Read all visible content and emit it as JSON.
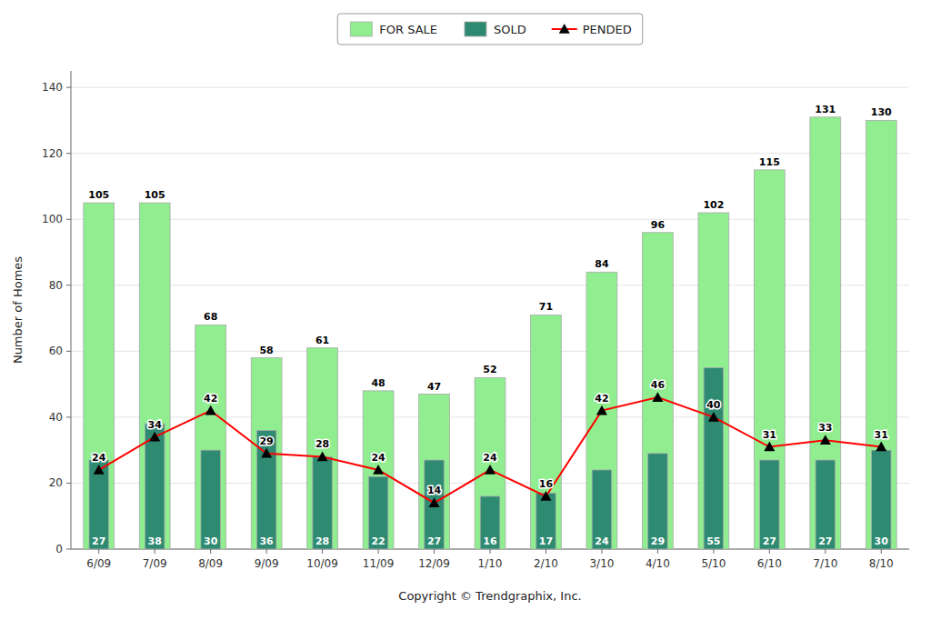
{
  "chart_data": {
    "type": "bar",
    "xlabel": "Copyright © Trendgraphix, Inc.",
    "ylabel": "Number of Homes",
    "categories": [
      "6/09",
      "7/09",
      "8/09",
      "9/09",
      "10/09",
      "11/09",
      "12/09",
      "1/10",
      "2/10",
      "3/10",
      "4/10",
      "5/10",
      "6/10",
      "7/10",
      "8/10"
    ],
    "series": [
      {
        "name": "FOR SALE",
        "type": "bar",
        "color": "#90EE90",
        "values": [
          105,
          105,
          68,
          58,
          61,
          48,
          47,
          52,
          71,
          84,
          96,
          102,
          115,
          131,
          130
        ]
      },
      {
        "name": "SOLD",
        "type": "bar",
        "color": "#2E8B72",
        "values": [
          27,
          38,
          30,
          36,
          28,
          22,
          27,
          16,
          17,
          24,
          29,
          55,
          27,
          27,
          30
        ]
      },
      {
        "name": "PENDED",
        "type": "line",
        "color": "#FF0000",
        "marker": "triangle",
        "values": [
          24,
          34,
          42,
          29,
          28,
          24,
          14,
          24,
          16,
          42,
          46,
          40,
          31,
          33,
          31
        ]
      }
    ],
    "ylim": [
      0,
      145
    ],
    "yticks": [
      0,
      20,
      40,
      60,
      80,
      100,
      120,
      140
    ],
    "grid": true,
    "legend": "top",
    "data_labels": true
  }
}
